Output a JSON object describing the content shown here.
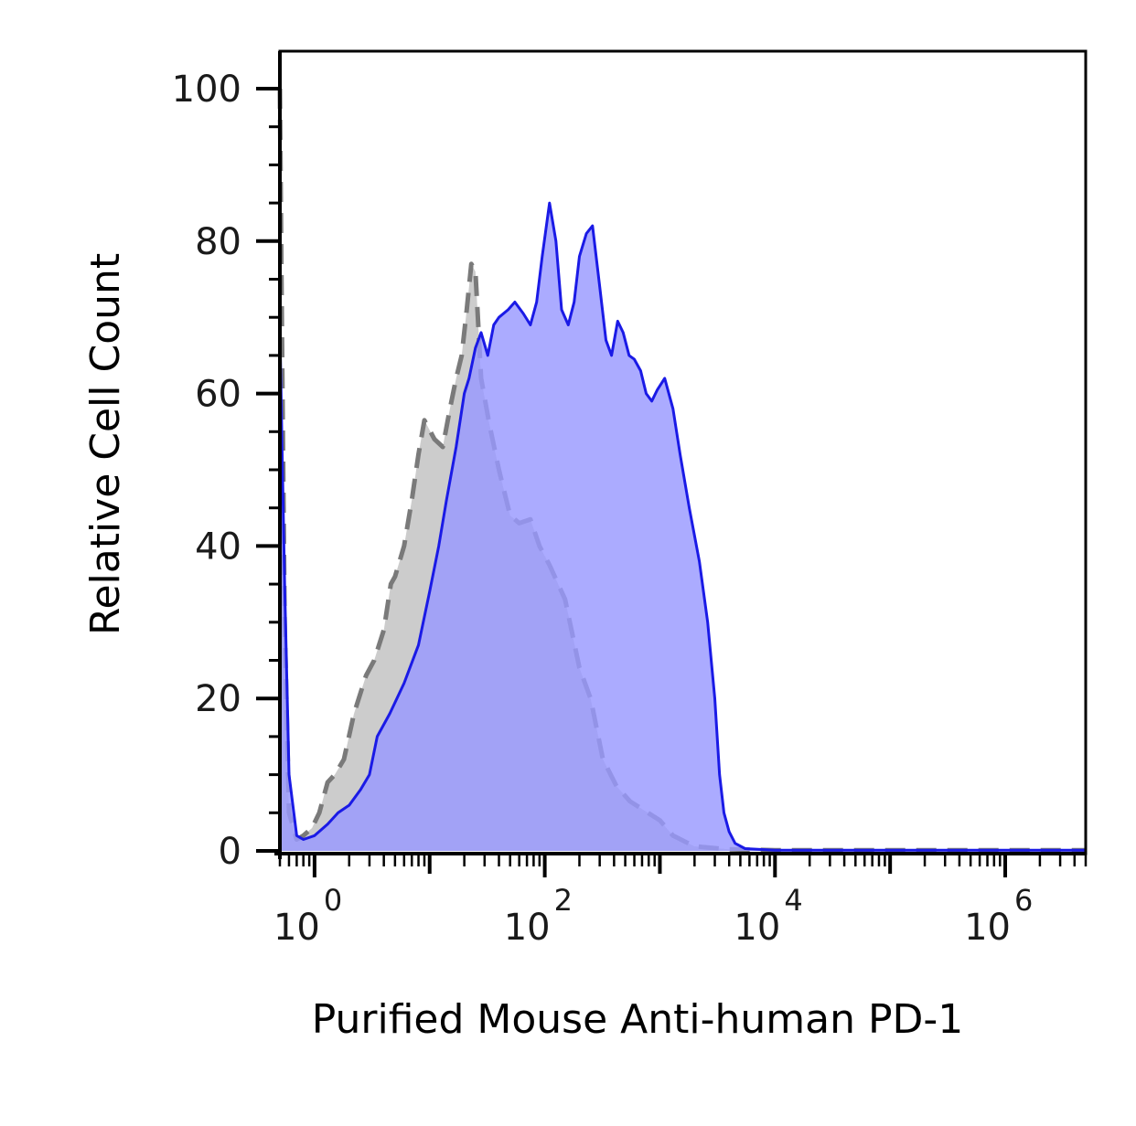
{
  "chart_data": {
    "type": "area",
    "title": "",
    "xlabel": "Purified Mouse Anti-human PD-1",
    "ylabel": "Relative Cell Count",
    "x_scale": "log",
    "xlim": [
      0.5,
      5000000
    ],
    "ylim": [
      0,
      100
    ],
    "grid": false,
    "y_ticks": [
      0,
      20,
      40,
      60,
      80,
      100
    ],
    "x_ticks": [
      {
        "base": "10",
        "exp": "0",
        "value": 1
      },
      {
        "base": "10",
        "exp": "2",
        "value": 100
      },
      {
        "base": "10",
        "exp": "4",
        "value": 10000
      },
      {
        "base": "10",
        "exp": "6",
        "value": 1000000
      }
    ],
    "series": [
      {
        "style": "dashed",
        "stroke": "#7a7a7a",
        "fill": "#cccccc",
        "points": [
          [
            0.5,
            100
          ],
          [
            0.52,
            70
          ],
          [
            0.55,
            30
          ],
          [
            0.6,
            5
          ],
          [
            0.7,
            1.5
          ],
          [
            0.8,
            2
          ],
          [
            0.95,
            3
          ],
          [
            1.1,
            5
          ],
          [
            1.3,
            9
          ],
          [
            1.5,
            10
          ],
          [
            1.8,
            12
          ],
          [
            2.2,
            18
          ],
          [
            2.8,
            23
          ],
          [
            3.3,
            25
          ],
          [
            4.0,
            29
          ],
          [
            4.6,
            35
          ],
          [
            5.0,
            36
          ],
          [
            6.0,
            40
          ],
          [
            7.0,
            46
          ],
          [
            8.0,
            52
          ],
          [
            9.0,
            56.5
          ],
          [
            11.0,
            54
          ],
          [
            13.0,
            53
          ],
          [
            15.0,
            58
          ],
          [
            17.0,
            62
          ],
          [
            19.0,
            65
          ],
          [
            21.0,
            71
          ],
          [
            23.0,
            77
          ],
          [
            25.0,
            76
          ],
          [
            28.0,
            62
          ],
          [
            33.0,
            56
          ],
          [
            40.0,
            50
          ],
          [
            50.0,
            44
          ],
          [
            60.0,
            43
          ],
          [
            75.0,
            43.5
          ],
          [
            90.0,
            40
          ],
          [
            110.0,
            37.5
          ],
          [
            150.0,
            33
          ],
          [
            200.0,
            24
          ],
          [
            250.0,
            20
          ],
          [
            320.0,
            12
          ],
          [
            420.0,
            8.5
          ],
          [
            550.0,
            6.5
          ],
          [
            750.0,
            5.2
          ],
          [
            1000.0,
            4
          ],
          [
            1300.0,
            2
          ],
          [
            2000.0,
            0.6
          ],
          [
            4000.0,
            0.2
          ],
          [
            10000.0,
            0.1
          ],
          [
            100000.0,
            0.1
          ],
          [
            5000000.0,
            0.1
          ]
        ]
      },
      {
        "style": "solid",
        "stroke": "#1a1ae6",
        "fill": "#9999ff",
        "points": [
          [
            0.5,
            68
          ],
          [
            0.55,
            35
          ],
          [
            0.6,
            10
          ],
          [
            0.7,
            2
          ],
          [
            0.8,
            1.5
          ],
          [
            1.0,
            2
          ],
          [
            1.3,
            3.5
          ],
          [
            1.6,
            5
          ],
          [
            2.0,
            6
          ],
          [
            2.5,
            8
          ],
          [
            3.0,
            10
          ],
          [
            3.5,
            15
          ],
          [
            4.5,
            18
          ],
          [
            6.0,
            22
          ],
          [
            8.0,
            27
          ],
          [
            10.0,
            34
          ],
          [
            12.0,
            40
          ],
          [
            14.0,
            46
          ],
          [
            17.0,
            53
          ],
          [
            20.0,
            60
          ],
          [
            22.0,
            62
          ],
          [
            25.0,
            66
          ],
          [
            28.0,
            68
          ],
          [
            32.0,
            65
          ],
          [
            36.0,
            69
          ],
          [
            40.0,
            70
          ],
          [
            48.0,
            71
          ],
          [
            55.0,
            72
          ],
          [
            65.0,
            70.5
          ],
          [
            75.0,
            69
          ],
          [
            85.0,
            72
          ],
          [
            95.0,
            78
          ],
          [
            110.0,
            85
          ],
          [
            125.0,
            80
          ],
          [
            140.0,
            71
          ],
          [
            160.0,
            69
          ],
          [
            180.0,
            72
          ],
          [
            200.0,
            78
          ],
          [
            230.0,
            81
          ],
          [
            260.0,
            82
          ],
          [
            300.0,
            74
          ],
          [
            340.0,
            67
          ],
          [
            380.0,
            65
          ],
          [
            430.0,
            69.5
          ],
          [
            480.0,
            68
          ],
          [
            540.0,
            65
          ],
          [
            600.0,
            64.5
          ],
          [
            680.0,
            63
          ],
          [
            760.0,
            60
          ],
          [
            850.0,
            59
          ],
          [
            950.0,
            60.5
          ],
          [
            1100.0,
            62
          ],
          [
            1300.0,
            58
          ],
          [
            1500.0,
            52
          ],
          [
            1800.0,
            45
          ],
          [
            2200.0,
            38
          ],
          [
            2600.0,
            30
          ],
          [
            3000.0,
            20
          ],
          [
            3300.0,
            10
          ],
          [
            3600.0,
            5
          ],
          [
            4000.0,
            2.5
          ],
          [
            4500.0,
            1
          ],
          [
            5500.0,
            0.3
          ],
          [
            10000.0,
            0.1
          ],
          [
            100000.0,
            0.1
          ],
          [
            5000000.0,
            0.1
          ]
        ]
      }
    ]
  }
}
